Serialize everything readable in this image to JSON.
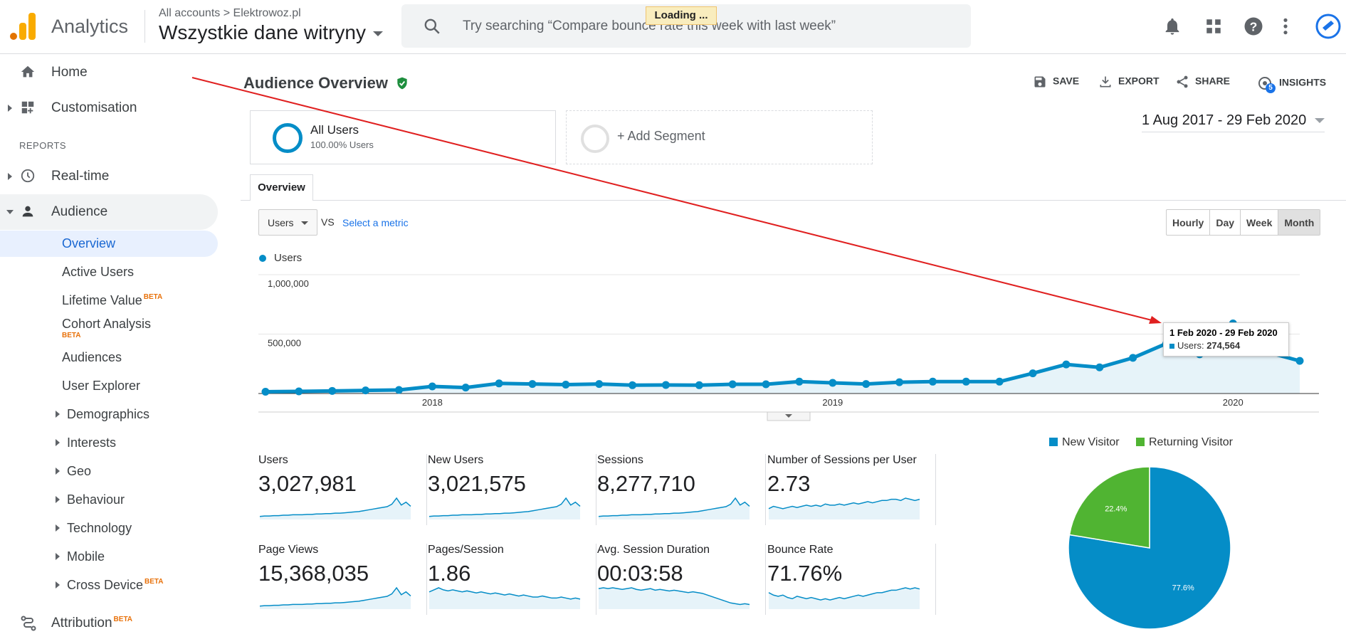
{
  "app": {
    "name": "Analytics",
    "account_path_root": "All accounts",
    "account_path_leaf": "Elektrowoz.pl",
    "property": "Wszystkie dane witryny"
  },
  "search": {
    "placeholder": "Try searching “Compare bounce rate this week with last week”"
  },
  "loading": "Loading ...",
  "sidebar": {
    "home": "Home",
    "customisation": "Customisation",
    "reports_header": "REPORTS",
    "realtime": "Real-time",
    "audience": "Audience",
    "audience_items": [
      "Overview",
      "Active Users",
      "Lifetime Value",
      "Cohort Analysis",
      "Audiences",
      "User Explorer"
    ],
    "audience_groups": [
      "Demographics",
      "Interests",
      "Geo",
      "Behaviour",
      "Technology",
      "Mobile",
      "Cross Device"
    ],
    "beta": "BETA",
    "attribution": "Attribution"
  },
  "report": {
    "title": "Audience Overview",
    "save": "SAVE",
    "export": "EXPORT",
    "share": "SHARE",
    "insights": "INSIGHTS",
    "insights_badge": "5"
  },
  "segments": {
    "all_users": "All Users",
    "all_users_pct": "100.00% Users",
    "add": "+ Add Segment"
  },
  "date_range": "1 Aug 2017 - 29 Feb 2020",
  "tab": "Overview",
  "metric_select": {
    "value": "Users",
    "vs": "VS",
    "select": "Select a metric"
  },
  "granularity": [
    "Hourly",
    "Day",
    "Week",
    "Month"
  ],
  "chart_data": {
    "type": "line",
    "series": [
      {
        "name": "Users",
        "values": [
          15000,
          18000,
          22000,
          26000,
          30000,
          60000,
          50000,
          85000,
          80000,
          75000,
          80000,
          70000,
          72000,
          70000,
          78000,
          78000,
          100000,
          90000,
          80000,
          95000,
          100000,
          100000,
          100000,
          170000,
          245000,
          220000,
          300000,
          420000,
          330000,
          590000,
          350000,
          274564
        ]
      }
    ],
    "x_ticks": [
      {
        "label": "2018",
        "index": 5
      },
      {
        "label": "2019",
        "index": 17
      },
      {
        "label": "2020",
        "index": 29
      }
    ],
    "y_ticks": [
      {
        "label": "1,000,000",
        "value": 1000000
      },
      {
        "label": "500,000",
        "value": 500000
      }
    ],
    "ylim": [
      0,
      1000000
    ],
    "tooltip": {
      "period": "1 Feb 2020 - 29 Feb 2020",
      "label": "Users:",
      "value": "274,564"
    }
  },
  "metrics": [
    {
      "label": "Users",
      "value": "3,027,981",
      "spark": [
        10,
        11,
        11,
        12,
        12,
        13,
        13,
        14,
        14,
        14,
        15,
        15,
        16,
        16,
        17,
        17,
        18,
        18,
        19,
        20,
        21,
        22,
        24,
        26,
        28,
        30,
        32,
        34,
        40,
        55,
        38,
        45,
        35
      ]
    },
    {
      "label": "New Users",
      "value": "3,021,575",
      "spark": [
        10,
        11,
        11,
        12,
        12,
        13,
        13,
        14,
        14,
        14,
        15,
        15,
        16,
        16,
        17,
        17,
        18,
        18,
        19,
        20,
        21,
        22,
        24,
        26,
        28,
        30,
        32,
        34,
        40,
        55,
        38,
        45,
        35
      ]
    },
    {
      "label": "Sessions",
      "value": "8,277,710",
      "spark": [
        10,
        11,
        11,
        12,
        12,
        13,
        13,
        14,
        14,
        14,
        15,
        15,
        16,
        16,
        17,
        17,
        18,
        18,
        19,
        20,
        21,
        22,
        24,
        26,
        28,
        30,
        32,
        34,
        40,
        55,
        38,
        45,
        35
      ]
    },
    {
      "label": "Number of Sessions per User",
      "value": "2.73",
      "spark": [
        20,
        22,
        21,
        20,
        21,
        22,
        21,
        22,
        23,
        22,
        23,
        22,
        24,
        23,
        23,
        24,
        23,
        24,
        25,
        24,
        25,
        26,
        25,
        26,
        27,
        27,
        28,
        28,
        27,
        29,
        28,
        27,
        28
      ]
    },
    {
      "label": "Page Views",
      "value": "15,368,035",
      "spark": [
        10,
        11,
        11,
        12,
        12,
        13,
        13,
        14,
        14,
        14,
        15,
        15,
        16,
        16,
        17,
        17,
        18,
        18,
        19,
        20,
        21,
        22,
        24,
        26,
        28,
        30,
        32,
        34,
        40,
        55,
        38,
        45,
        35
      ]
    },
    {
      "label": "Pages/Session",
      "value": "1.86",
      "spark": [
        28,
        30,
        32,
        30,
        29,
        30,
        29,
        28,
        29,
        28,
        27,
        28,
        27,
        26,
        27,
        26,
        25,
        26,
        25,
        24,
        25,
        24,
        23,
        23,
        24,
        23,
        22,
        22,
        23,
        22,
        21,
        22,
        21
      ]
    },
    {
      "label": "Avg. Session Duration",
      "value": "00:03:58",
      "spark": [
        30,
        31,
        30,
        31,
        30,
        29,
        30,
        31,
        29,
        28,
        29,
        30,
        28,
        29,
        28,
        27,
        28,
        27,
        26,
        25,
        26,
        25,
        24,
        22,
        20,
        18,
        16,
        14,
        12,
        11,
        10,
        11,
        10
      ]
    },
    {
      "label": "Bounce Rate",
      "value": "71.76%",
      "spark": [
        22,
        20,
        19,
        20,
        18,
        17,
        19,
        18,
        17,
        18,
        17,
        16,
        17,
        16,
        17,
        18,
        17,
        18,
        19,
        20,
        19,
        20,
        21,
        22,
        22,
        23,
        24,
        24,
        25,
        26,
        25,
        26,
        25
      ]
    }
  ],
  "pie": {
    "slices": [
      {
        "name": "New Visitor",
        "value": 77.6,
        "label": "77.6%",
        "color": "#058dc7"
      },
      {
        "name": "Returning Visitor",
        "value": 22.4,
        "label": "22.4%",
        "color": "#50b432"
      }
    ]
  },
  "colors": {
    "accent": "#058dc7",
    "green": "#50b432",
    "nav_active": "#e8f0fe"
  }
}
